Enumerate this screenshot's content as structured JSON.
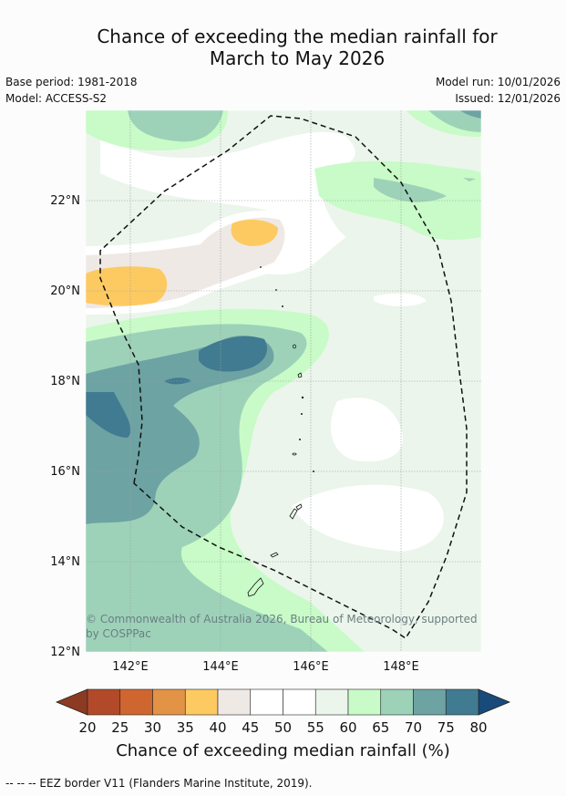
{
  "title_line1": "Chance of exceeding the median rainfall for",
  "title_line2": "March to May 2026",
  "meta": {
    "base_period": "Base period: 1981-2018",
    "model": "Model: ACCESS-S2",
    "model_run": "Model run: 10/01/2026",
    "issued": "Issued: 12/01/2026"
  },
  "map": {
    "lat_labels": [
      "12°N",
      "14°N",
      "16°N",
      "18°N",
      "20°N",
      "22°N"
    ],
    "lon_labels": [
      "142°E",
      "144°E",
      "146°E",
      "148°E"
    ],
    "copyright": "© Commonwealth of Australia 2026, Bureau of Meteorology, supported by COSPPac"
  },
  "legend": {
    "ticks": [
      "20",
      "25",
      "30",
      "35",
      "40",
      "45",
      "50",
      "55",
      "60",
      "65",
      "70",
      "75",
      "80"
    ],
    "colors": [
      "#b24a2a",
      "#d0662f",
      "#e39345",
      "#fdca62",
      "#efe9e6",
      "#ffffff",
      "#ffffff",
      "#ebf5eb",
      "#c8fbc7",
      "#9dd2b9",
      "#6ea3a3",
      "#417b91"
    ],
    "low_arrow_color": "#8c3b22",
    "high_arrow_color": "#194b7a",
    "title": "Chance of exceeding median rainfall (%)"
  },
  "footnote": "--  --  -- EEZ border V11 (Flanders Marine Institute, 2019)."
}
